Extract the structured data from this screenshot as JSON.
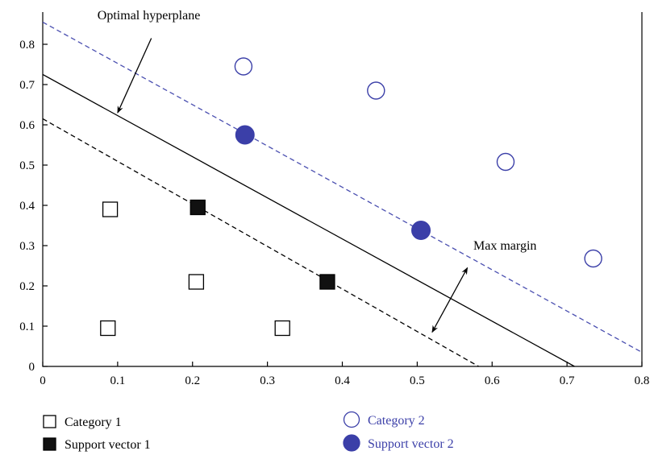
{
  "colors": {
    "axis": "#000000",
    "category1": "#000000",
    "category2": "#3b3fa8",
    "upper_margin": "#4a4fb0"
  },
  "chart_data": {
    "type": "scatter",
    "xlim": [
      0,
      0.8
    ],
    "ylim": [
      0,
      0.85
    ],
    "x_ticks": [
      0,
      0.1,
      0.2,
      0.3,
      0.4,
      0.5,
      0.6,
      0.7,
      0.8
    ],
    "y_ticks": [
      0,
      0.1,
      0.2,
      0.3,
      0.4,
      0.5,
      0.6,
      0.7,
      0.8
    ],
    "x_tick_labels": [
      "0",
      "0.1",
      "0.2",
      "0.3",
      "0.4",
      "0.5",
      "0.6",
      "0.7",
      "0.8"
    ],
    "y_tick_labels": [
      "0",
      "0.1",
      "0.2",
      "0.3",
      "0.4",
      "0.5",
      "0.6",
      "0.7",
      "0.8"
    ],
    "series": [
      {
        "name": "Category 1",
        "marker": "square-open",
        "points": [
          [
            0.09,
            0.39
          ],
          [
            0.205,
            0.21
          ],
          [
            0.087,
            0.095
          ],
          [
            0.32,
            0.095
          ]
        ]
      },
      {
        "name": "Support vector 1",
        "marker": "square-filled",
        "points": [
          [
            0.207,
            0.395
          ],
          [
            0.38,
            0.21
          ]
        ]
      },
      {
        "name": "Category 2",
        "marker": "circle-open",
        "points": [
          [
            0.268,
            0.745
          ],
          [
            0.445,
            0.685
          ],
          [
            0.618,
            0.508
          ],
          [
            0.735,
            0.268
          ]
        ]
      },
      {
        "name": "Support vector 2",
        "marker": "circle-filled",
        "points": [
          [
            0.27,
            0.575
          ],
          [
            0.505,
            0.338
          ]
        ]
      }
    ],
    "lines": [
      {
        "role": "upper-margin",
        "style": "dashed",
        "points": [
          [
            0,
            0.855
          ],
          [
            0.8,
            0.035
          ]
        ]
      },
      {
        "role": "hyperplane",
        "style": "solid",
        "points": [
          [
            0,
            0.725
          ],
          [
            0.71,
            0
          ]
        ]
      },
      {
        "role": "lower-margin",
        "style": "dashed",
        "points": [
          [
            0,
            0.615
          ],
          [
            0.582,
            0
          ]
        ]
      }
    ],
    "annotations": [
      {
        "text": "Optimal hyperplane",
        "label_at": [
          0.073,
          0.862
        ],
        "arrow_from": [
          0.145,
          0.815
        ],
        "arrow_to": [
          0.1,
          0.63
        ]
      },
      {
        "text": "Max margin",
        "label_at": [
          0.575,
          0.29
        ],
        "arrow_from": [
          0.567,
          0.245
        ],
        "arrow_to": [
          0.52,
          0.085
        ]
      }
    ]
  }
}
